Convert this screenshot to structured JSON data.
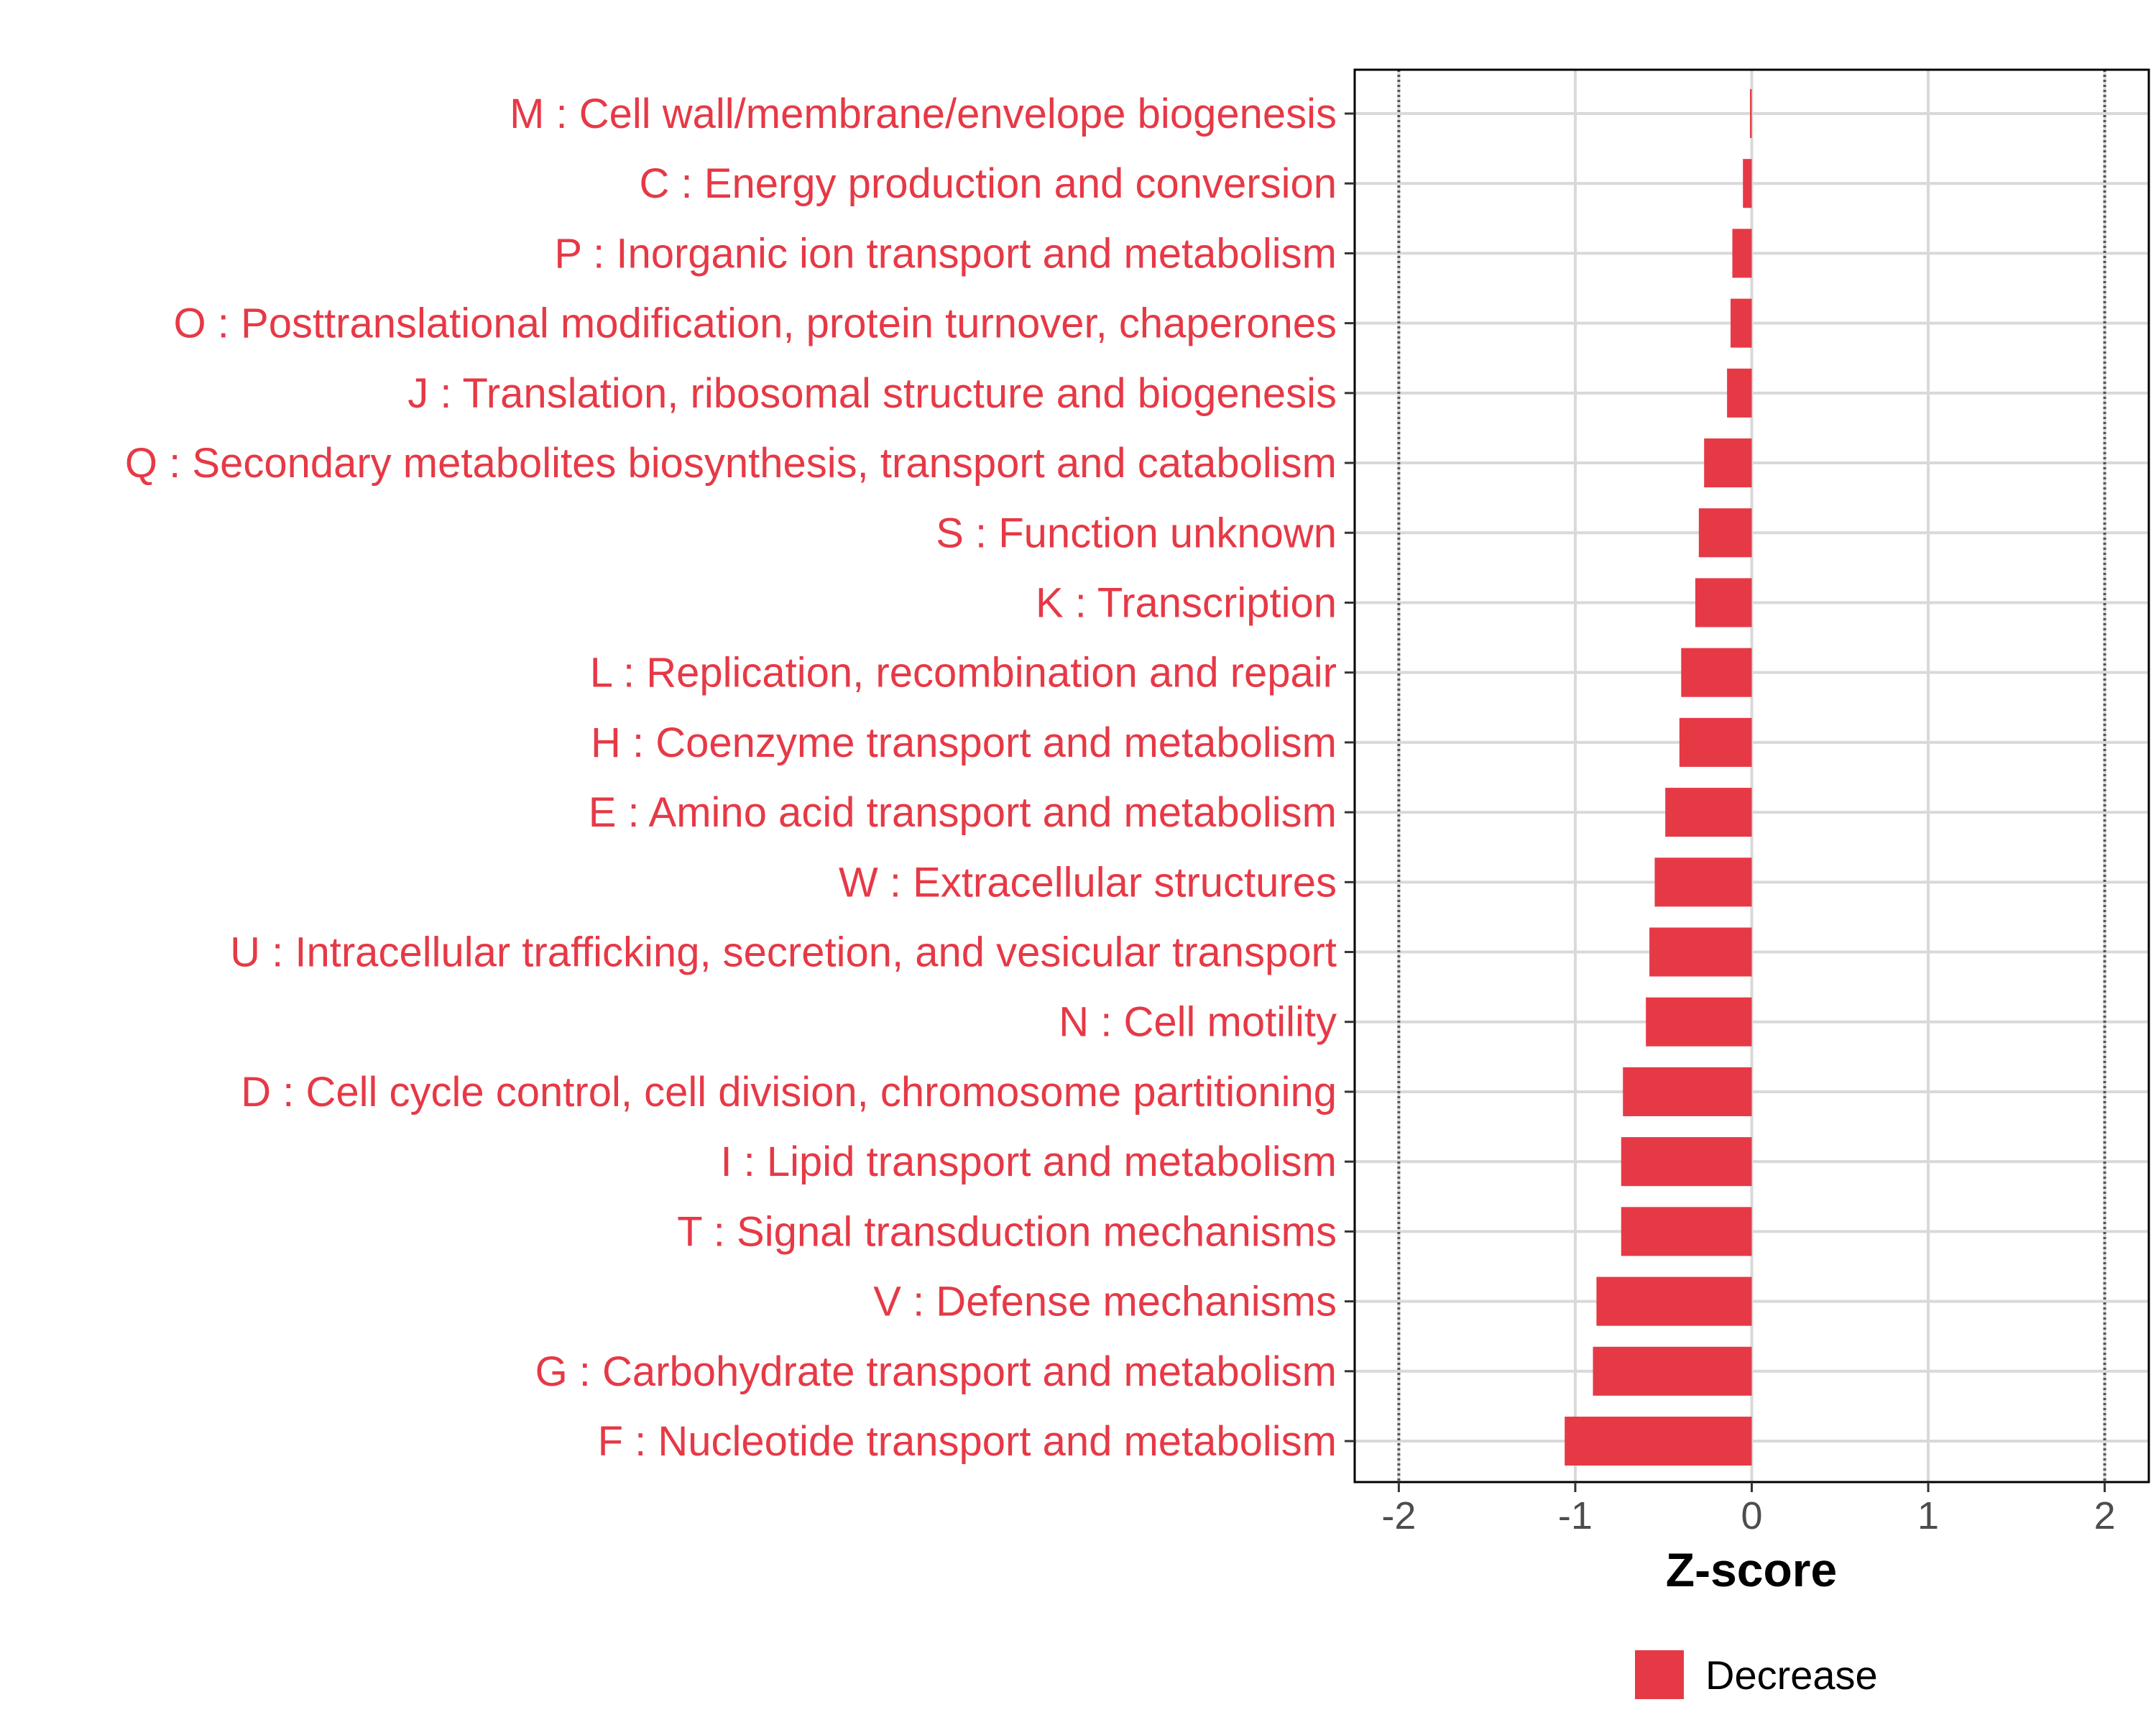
{
  "chart_data": {
    "type": "bar",
    "orientation": "horizontal",
    "categories": [
      "M : Cell wall/membrane/envelope biogenesis",
      "C : Energy production and conversion",
      "P : Inorganic ion transport and metabolism",
      "O : Posttranslational modification, protein turnover, chaperones",
      "J : Translation, ribosomal structure and biogenesis",
      "Q : Secondary metabolites biosynthesis, transport and catabolism",
      "S : Function unknown",
      "K : Transcription",
      "L : Replication, recombination and repair",
      "H : Coenzyme transport and metabolism",
      "E : Amino acid transport and metabolism",
      "W : Extracellular structures",
      "U : Intracellular trafficking, secretion, and vesicular transport",
      "N : Cell motility",
      "D : Cell cycle control, cell division, chromosome partitioning",
      "I : Lipid transport and metabolism",
      "T : Signal transduction mechanisms",
      "V : Defense mechanisms",
      "G : Carbohydrate transport and metabolism",
      "F : Nucleotide transport and metabolism"
    ],
    "values": [
      -0.01,
      -0.05,
      -0.11,
      -0.12,
      -0.14,
      -0.27,
      -0.3,
      -0.32,
      -0.4,
      -0.41,
      -0.49,
      -0.55,
      -0.58,
      -0.6,
      -0.73,
      -0.74,
      -0.74,
      -0.88,
      -0.9,
      -1.06
    ],
    "series": [
      {
        "name": "Decrease",
        "values": [
          -0.01,
          -0.05,
          -0.11,
          -0.12,
          -0.14,
          -0.27,
          -0.3,
          -0.32,
          -0.4,
          -0.41,
          -0.49,
          -0.55,
          -0.58,
          -0.6,
          -0.73,
          -0.74,
          -0.74,
          -0.88,
          -0.9,
          -1.06
        ]
      }
    ],
    "xlabel": "Z-score",
    "ylabel": "",
    "xlim": [
      -2.25,
      2.25
    ],
    "xticks": [
      -2,
      -1,
      0,
      1,
      2
    ],
    "xtick_labels": [
      "-2",
      "-1",
      "0",
      "1",
      "2"
    ],
    "reference_lines": [
      -2,
      2
    ],
    "grid": true,
    "legend": {
      "entries": [
        "Decrease"
      ],
      "position": "bottom"
    },
    "colors": {
      "decrease": "#e63946",
      "label": "#e63946",
      "grid": "#d9d9d9",
      "reference_line": "#555555",
      "border": "#000000"
    }
  }
}
